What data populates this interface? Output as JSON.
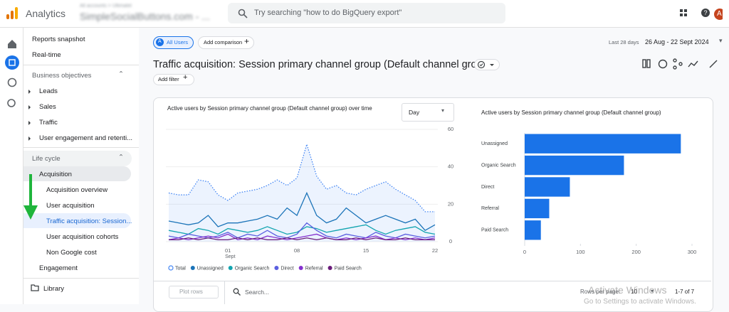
{
  "header": {
    "product": "Analytics",
    "account_path": "All accounts > Ultimatel",
    "account": "SimpleSocialButtons.com - ...",
    "search_placeholder": "Try searching \"how to do BigQuery export\"",
    "avatar": "A"
  },
  "sidebar": {
    "top": [
      "Reports snapshot",
      "Real-time"
    ],
    "business_objectives": {
      "title": "Business objectives",
      "items": [
        "Leads",
        "Sales",
        "Traffic",
        "User engagement and retenti..."
      ]
    },
    "life_cycle": {
      "title": "Life cycle",
      "acquisition": "Acquisition",
      "acquisition_items": [
        "Acquisition overview",
        "User acquisition",
        "Traffic acquisition: Session...",
        "User acquisition cohorts",
        "Non Google cost"
      ],
      "engagement": "Engagement"
    },
    "library": "Library"
  },
  "toolbar": {
    "segment_badge": "A",
    "segment": "All Users",
    "add_comparison": "Add comparison",
    "range_label": "Last 28 days",
    "range": "26 Aug - 22 Sept 2024"
  },
  "page_title": "Traffic acquisition: Session primary channel group (Default channel group)",
  "add_filter": "Add filter",
  "line_chart": {
    "type": "line",
    "title": "Active users by Session primary channel group (Default channel group) over time",
    "granularity": "Day",
    "categories": [
      null,
      null,
      null,
      null,
      null,
      null,
      "01",
      null,
      null,
      null,
      null,
      null,
      null,
      "08",
      null,
      null,
      null,
      null,
      null,
      null,
      "15",
      null,
      null,
      null,
      null,
      null,
      null,
      "22"
    ],
    "x_sublabel": "Sept",
    "ylim": [
      0,
      60
    ],
    "yticks": [
      0,
      20,
      40,
      60
    ],
    "grid": true,
    "series": [
      {
        "name": "Total",
        "color": "#4285f4",
        "values": [
          26,
          25,
          25,
          33,
          32,
          25,
          22,
          26,
          27,
          28,
          30,
          33,
          30,
          34,
          52,
          35,
          28,
          30,
          26,
          25,
          28,
          30,
          32,
          28,
          25,
          22,
          16,
          16
        ]
      },
      {
        "name": "Unassigned",
        "color": "#1a73b8",
        "values": [
          11,
          10,
          9,
          10,
          14,
          8,
          10,
          10,
          11,
          12,
          14,
          12,
          18,
          14,
          26,
          14,
          10,
          12,
          18,
          14,
          10,
          12,
          14,
          12,
          10,
          12,
          6,
          9
        ]
      },
      {
        "name": "Organic Search",
        "color": "#12a4af",
        "values": [
          6,
          5,
          4,
          7,
          6,
          4,
          7,
          6,
          5,
          6,
          8,
          6,
          4,
          5,
          8,
          7,
          5,
          6,
          7,
          8,
          9,
          6,
          4,
          6,
          7,
          8,
          5,
          4
        ]
      },
      {
        "name": "Direct",
        "color": "#5b5fe0",
        "values": [
          3,
          2,
          4,
          3,
          2,
          3,
          5,
          2,
          4,
          3,
          6,
          3,
          2,
          4,
          10,
          6,
          3,
          2,
          4,
          3,
          2,
          5,
          3,
          2,
          4,
          3,
          2,
          3
        ]
      },
      {
        "name": "Referral",
        "color": "#8430ce",
        "values": [
          1,
          2,
          1,
          2,
          3,
          2,
          4,
          1,
          2,
          1,
          3,
          2,
          1,
          2,
          3,
          4,
          2,
          1,
          2,
          1,
          2,
          3,
          1,
          2,
          1,
          2,
          1,
          2
        ]
      },
      {
        "name": "Paid Search",
        "color": "#6a1b7a",
        "values": [
          1,
          1,
          2,
          1,
          2,
          1,
          1,
          2,
          1,
          2,
          1,
          1,
          2,
          1,
          2,
          1,
          2,
          1,
          1,
          2,
          1,
          2,
          1,
          1,
          2,
          1,
          1,
          1
        ]
      }
    ]
  },
  "bar_chart": {
    "type": "hbar",
    "title": "Active users by Session primary channel group (Default channel group)",
    "categories": [
      "Unassigned",
      "Organic Search",
      "Direct",
      "Referral",
      "Paid Search"
    ],
    "values": [
      280,
      178,
      81,
      44,
      29
    ],
    "color": "#1a73e8",
    "xlim": [
      0,
      300
    ],
    "xticks": [
      0,
      100,
      200,
      300
    ]
  },
  "table_bar": {
    "plot_rows": "Plot rows",
    "search": "Search...",
    "rows_per_page": "Rows per page:",
    "page_size": "10",
    "range": "1-7 of 7"
  },
  "watermark": {
    "title": "Activate Windows",
    "text": "Go to Settings to activate Windows."
  }
}
